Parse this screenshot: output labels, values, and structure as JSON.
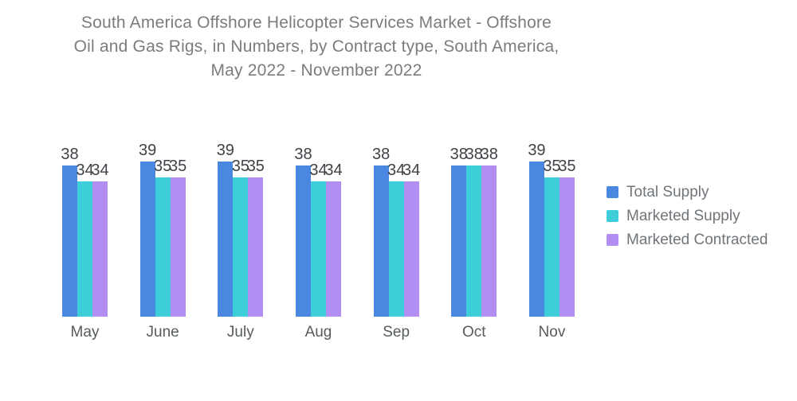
{
  "title": {
    "lines": [
      "South America Offshore Helicopter Services Market - Offshore",
      "Oil and Gas Rigs, in Numbers, by Contract type, South America,",
      "May 2022 - November 2022"
    ]
  },
  "chart_data": {
    "type": "bar",
    "title": "South America Offshore Helicopter Services Market - Offshore Oil and Gas Rigs, in Numbers, by Contract type, South America, May 2022 - November 2022",
    "categories": [
      "May",
      "June",
      "July",
      "Aug",
      "Sep",
      "Oct",
      "Nov"
    ],
    "series": [
      {
        "name": "Total Supply",
        "color": "#4a87e0",
        "values": [
          38,
          39,
          39,
          38,
          38,
          38,
          39
        ]
      },
      {
        "name": "Marketed Supply",
        "color": "#3dced9",
        "values": [
          34,
          35,
          35,
          34,
          34,
          38,
          35
        ]
      },
      {
        "name": "Marketed Contracted",
        "color": "#b28ef3",
        "values": [
          34,
          35,
          35,
          34,
          34,
          38,
          35
        ]
      }
    ],
    "xlabel": "",
    "ylabel": "",
    "ylim": [
      0,
      45
    ],
    "grid": false,
    "axis_lines": false,
    "data_labels": true,
    "legend_position": "right"
  }
}
